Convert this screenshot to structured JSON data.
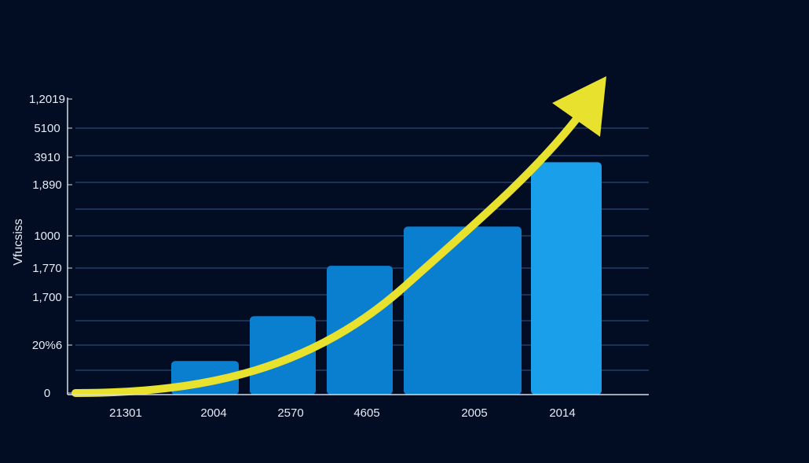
{
  "chart_data": {
    "type": "bar",
    "title": "",
    "xlabel": "",
    "ylabel": "Vfucsiss",
    "y_tick_labels": [
      "0",
      "20%6",
      "1,700",
      "1,770",
      "1000",
      "1,890",
      "3910",
      "5100",
      "1,2019"
    ],
    "categories": [
      "21301",
      "2004",
      "2570",
      "4605",
      "2005",
      "2014"
    ],
    "values": [
      0.2,
      1.2,
      2.8,
      4.6,
      6.0,
      8.3
    ],
    "ylim": [
      0,
      10.5
    ],
    "grid": true,
    "trend_arrow": true,
    "colors": {
      "background": "#020c22",
      "bar": "#0a7fd0",
      "bar_last": "#1aa0ea",
      "arrow": "#e8e22e",
      "grid": "#2a4a7a",
      "axis": "#d8dde8",
      "text": "#e6ecf5"
    }
  }
}
